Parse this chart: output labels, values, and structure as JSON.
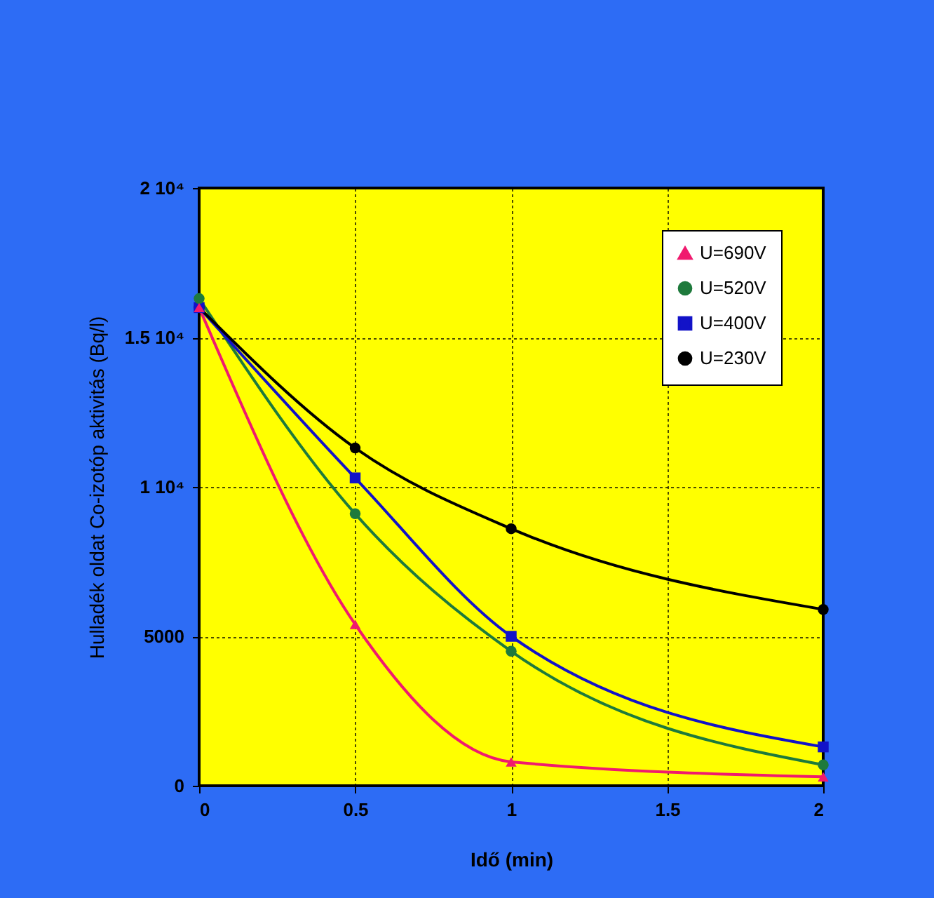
{
  "chart_data": {
    "type": "line",
    "xlabel": "Idő (min)",
    "ylabel": "Hulladék oldat Co-izotóp aktivitás (Bq/l)",
    "x": [
      0,
      0.5,
      1,
      2
    ],
    "series": [
      {
        "name": "U=690V",
        "color": "#f01a6e",
        "marker": "triangle",
        "values": [
          16000,
          5400,
          800,
          300
        ]
      },
      {
        "name": "U=520V",
        "color": "#1e7a3c",
        "marker": "circle",
        "values": [
          16300,
          9100,
          4500,
          700
        ]
      },
      {
        "name": "U=400V",
        "color": "#1212c8",
        "marker": "square",
        "values": [
          16000,
          10300,
          5000,
          1300
        ]
      },
      {
        "name": "U=230V",
        "color": "#000000",
        "marker": "circle",
        "values": [
          16000,
          11300,
          8600,
          5900
        ]
      }
    ],
    "xlim": [
      0,
      2
    ],
    "xticks": [
      0,
      0.5,
      1,
      1.5,
      2
    ],
    "ylim": [
      0,
      20000
    ],
    "yticks": [
      0,
      5000,
      {
        "value": 10000,
        "label": "1 10⁴"
      },
      {
        "value": 15000,
        "label": "1.5 10⁴"
      },
      {
        "value": 20000,
        "label": "2 10⁴"
      }
    ],
    "grid": true,
    "legend": "top right",
    "line_style": "solid"
  }
}
